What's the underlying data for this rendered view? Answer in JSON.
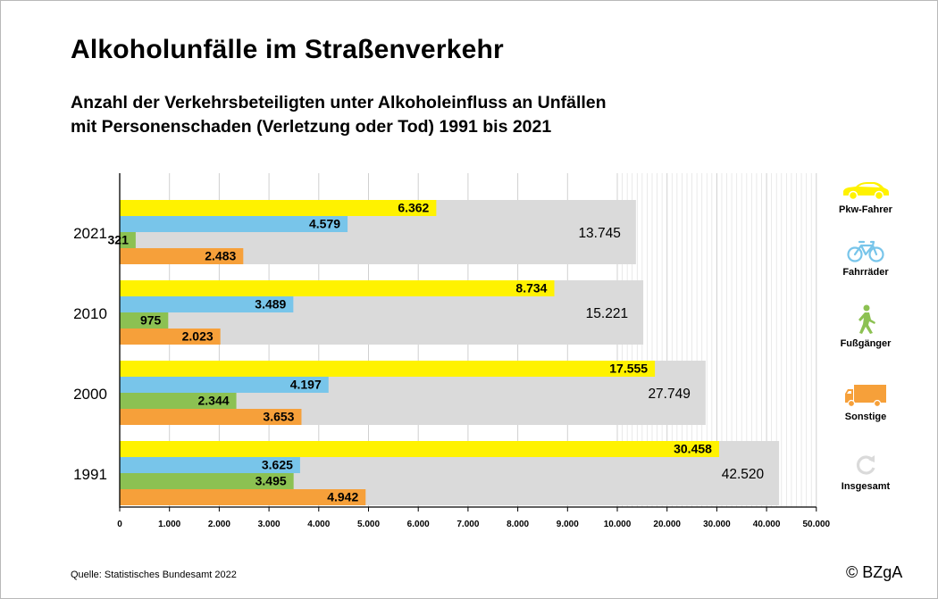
{
  "title": "Alkoholunfälle im Straßenverkehr",
  "subtitle_line1": "Anzahl der Verkehrsbeteiligten unter Alkoholeinfluss an Unfällen",
  "subtitle_line2": "mit Personenschaden (Verletzung oder Tod) 1991 bis 2021",
  "source": "Quelle: Statistisches Bundesamt 2022",
  "copyright": "© BZgA",
  "colors": {
    "pkw": "#fff200",
    "fahrrad": "#78c5ea",
    "fussgaenger": "#8cc152",
    "sonstige": "#f6a03a",
    "insgesamt": "#dadada"
  },
  "legend": [
    {
      "key": "pkw",
      "label": "Pkw-Fahrer",
      "icon": "car-icon"
    },
    {
      "key": "fahrrad",
      "label": "Fahrräder",
      "icon": "bicycle-icon"
    },
    {
      "key": "fussgaenger",
      "label": "Fußgänger",
      "icon": "pedestrian-icon"
    },
    {
      "key": "sonstige",
      "label": "Sonstige",
      "icon": "truck-icon"
    },
    {
      "key": "insgesamt",
      "label": "Insgesamt",
      "icon": "refresh-icon"
    }
  ],
  "chart_data": {
    "type": "bar",
    "orientation": "horizontal",
    "scale": "piecewise-linear (0–10.000 in steps of 1.000, then 10.000–50.000 in steps of 10.000)",
    "categories": [
      "2021",
      "2010",
      "2000",
      "1991"
    ],
    "series": [
      {
        "key": "pkw",
        "name": "Pkw-Fahrer",
        "values": [
          6362,
          8734,
          17555,
          30458
        ]
      },
      {
        "key": "fahrrad",
        "name": "Fahrräder",
        "values": [
          4579,
          3489,
          4197,
          3625
        ]
      },
      {
        "key": "fussgaenger",
        "name": "Fußgänger",
        "values": [
          321,
          975,
          2344,
          3495
        ]
      },
      {
        "key": "sonstige",
        "name": "Sonstige",
        "values": [
          2483,
          2023,
          3653,
          4942
        ]
      }
    ],
    "totals": {
      "name": "Insgesamt",
      "values": [
        13745,
        15221,
        27749,
        42520
      ]
    },
    "x_ticks": [
      0,
      1000,
      2000,
      3000,
      4000,
      5000,
      6000,
      7000,
      8000,
      9000,
      10000,
      20000,
      30000,
      40000,
      50000
    ],
    "x_tick_labels": [
      "0",
      "1.000",
      "2.000",
      "3.000",
      "4.000",
      "5.000",
      "6.000",
      "7.000",
      "8.000",
      "9.000",
      "10.000",
      "20.000",
      "30.000",
      "40.000",
      "50.000"
    ],
    "data_labels": {
      "series": [
        [
          "6.362",
          "8.734",
          "17.555",
          "30.458"
        ],
        [
          "4.579",
          "3.489",
          "4.197",
          "3.625"
        ],
        [
          "321",
          "975",
          "2.344",
          "3.495"
        ],
        [
          "2.483",
          "2.023",
          "3.653",
          "4.942"
        ]
      ],
      "totals": [
        "13.745",
        "15.221",
        "27.749",
        "42.520"
      ]
    },
    "xlim": [
      0,
      50000
    ],
    "grid": true,
    "legend_position": "right"
  }
}
